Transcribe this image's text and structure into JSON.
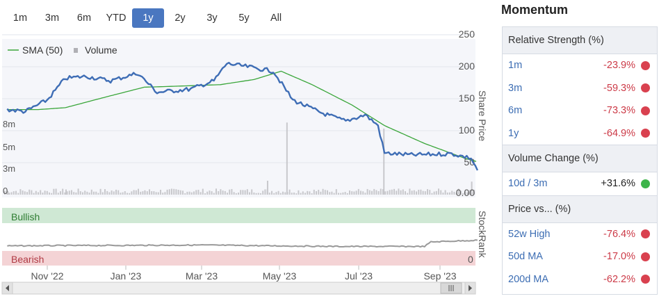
{
  "range_tabs": [
    "1m",
    "3m",
    "6m",
    "YTD",
    "1y",
    "2y",
    "3y",
    "5y",
    "All"
  ],
  "active_tab": "1y",
  "legend": {
    "sma_label": "SMA (50)",
    "volume_label": "Volume"
  },
  "colors": {
    "price": "#3e6db5",
    "sma": "#3aa63a",
    "volume": "#c8c8cc",
    "stockrank": "#999999",
    "bullish_band": "#cfe8d4",
    "bearish_band": "#f4d3d5",
    "accent": "#4a77c0"
  },
  "bands": {
    "bullish": "Bullish",
    "bearish": "Bearish"
  },
  "axis_titles": {
    "price": "Share Price",
    "rank": "StockRank"
  },
  "price_ticks": [
    "250",
    "200",
    "150",
    "100",
    "50",
    "0.00"
  ],
  "volume_ticks": [
    "8m",
    "5m",
    "3m",
    "0"
  ],
  "rank_zero": "0",
  "date_ticks": [
    "Nov '22",
    "Jan '23",
    "Mar '23",
    "May '23",
    "Jul '23",
    "Sep '23"
  ],
  "chart_data": [
    {
      "type": "line",
      "title": "",
      "ylabel": "Share Price",
      "ylim": [
        0,
        250
      ],
      "x_ticks": [
        "Nov '22",
        "Jan '23",
        "Mar '23",
        "May '23",
        "Jul '23",
        "Sep '23"
      ],
      "series": [
        {
          "name": "SMA (50)",
          "points": [
            [
              "2022-10-01",
              133
            ],
            [
              "2022-10-25",
              133
            ],
            [
              "2022-11-15",
              136
            ],
            [
              "2022-12-15",
              152
            ],
            [
              "2023-01-15",
              168
            ],
            [
              "2023-02-15",
              170
            ],
            [
              "2023-03-15",
              172
            ],
            [
              "2023-04-10",
              180
            ],
            [
              "2023-05-01",
              193
            ],
            [
              "2023-05-25",
              172
            ],
            [
              "2023-06-25",
              140
            ],
            [
              "2023-07-20",
              108
            ],
            [
              "2023-08-20",
              80
            ],
            [
              "2023-09-20",
              57
            ],
            [
              "2023-09-29",
              52
            ]
          ]
        },
        {
          "name": "Price",
          "points": [
            [
              "2022-10-01",
              133
            ],
            [
              "2022-10-15",
              130
            ],
            [
              "2022-11-01",
              148
            ],
            [
              "2022-11-15",
              182
            ],
            [
              "2022-12-01",
              185
            ],
            [
              "2022-12-20",
              178
            ],
            [
              "2023-01-10",
              190
            ],
            [
              "2023-01-25",
              160
            ],
            [
              "2023-02-20",
              165
            ],
            [
              "2023-03-10",
              178
            ],
            [
              "2023-03-20",
              205
            ],
            [
              "2023-04-05",
              200
            ],
            [
              "2023-04-25",
              193
            ],
            [
              "2023-05-10",
              148
            ],
            [
              "2023-06-01",
              128
            ],
            [
              "2023-06-20",
              115
            ],
            [
              "2023-07-05",
              125
            ],
            [
              "2023-07-15",
              108
            ],
            [
              "2023-07-20",
              65
            ],
            [
              "2023-08-10",
              62
            ],
            [
              "2023-09-10",
              64
            ],
            [
              "2023-09-25",
              57
            ],
            [
              "2023-09-30",
              38
            ]
          ]
        },
        {
          "name": "Volume",
          "unit": "millions",
          "points": [
            [
              "2022-10-01",
              0.4
            ],
            [
              "2022-11-15",
              0.6
            ],
            [
              "2023-01-15",
              0.5
            ],
            [
              "2023-04-20",
              1.6
            ],
            [
              "2023-05-05",
              8.3
            ],
            [
              "2023-07-19",
              7.6
            ],
            [
              "2023-09-25",
              1.5
            ]
          ]
        }
      ]
    },
    {
      "type": "line",
      "title": "",
      "ylabel": "StockRank",
      "series": [
        {
          "name": "StockRank",
          "points": [
            [
              "2022-10-01",
              45
            ],
            [
              "2022-11-10",
              47
            ],
            [
              "2023-01-01",
              48
            ],
            [
              "2023-03-01",
              50
            ],
            [
              "2023-05-01",
              45
            ],
            [
              "2023-06-15",
              42
            ],
            [
              "2023-08-20",
              42
            ],
            [
              "2023-08-25",
              68
            ],
            [
              "2023-09-30",
              78
            ]
          ]
        }
      ]
    }
  ],
  "panel": {
    "title": "Momentum",
    "sections": [
      {
        "header": "Relative Strength (%)",
        "rows": [
          {
            "label": "1m",
            "value": "-23.9%",
            "status": "red"
          },
          {
            "label": "3m",
            "value": "-59.3%",
            "status": "red"
          },
          {
            "label": "6m",
            "value": "-73.3%",
            "status": "red"
          },
          {
            "label": "1y",
            "value": "-64.9%",
            "status": "red"
          }
        ]
      },
      {
        "header": "Volume Change (%)",
        "rows": [
          {
            "label": "10d / 3m",
            "value": "+31.6%",
            "status": "green"
          }
        ]
      },
      {
        "header": "Price vs... (%)",
        "rows": [
          {
            "label": "52w High",
            "value": "-76.4%",
            "status": "red"
          },
          {
            "label": "50d MA",
            "value": "-17.0%",
            "status": "red"
          },
          {
            "label": "200d MA",
            "value": "-62.2%",
            "status": "red"
          }
        ]
      }
    ]
  }
}
